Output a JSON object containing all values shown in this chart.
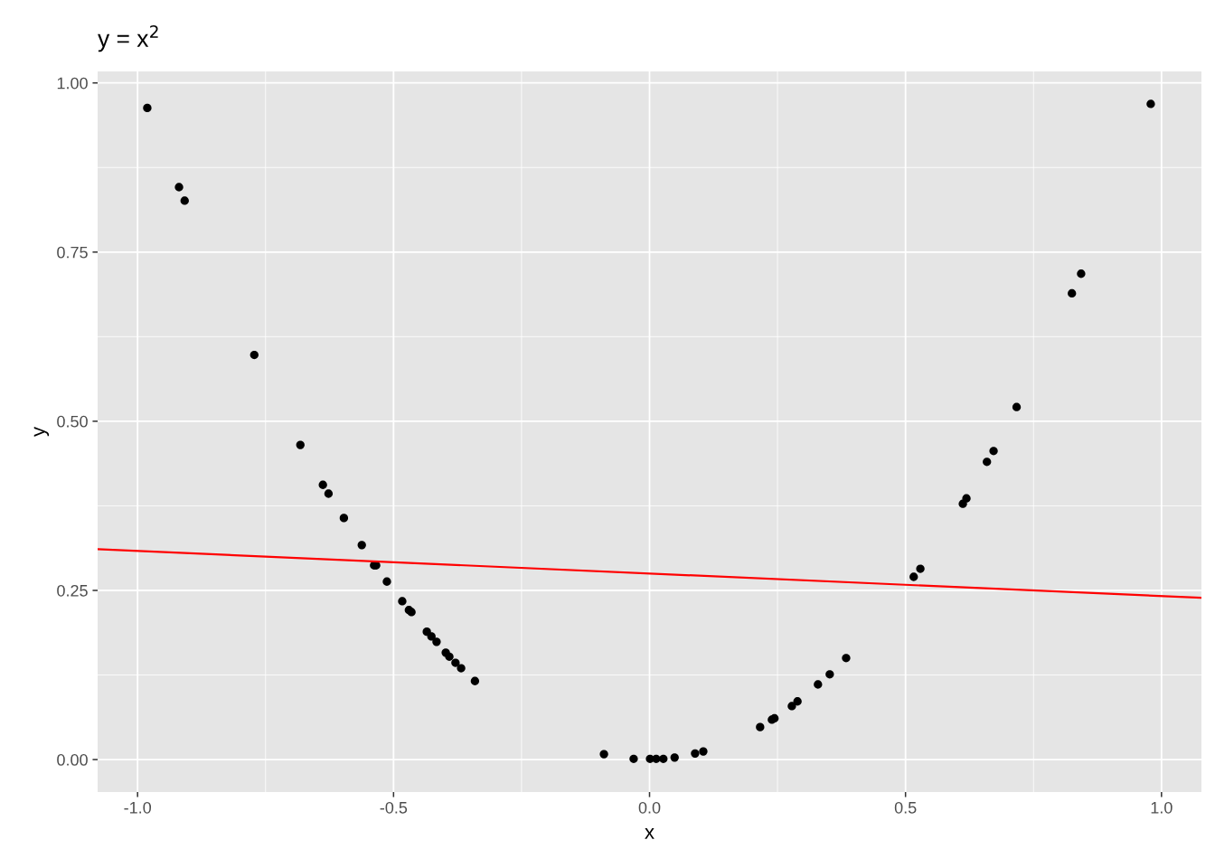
{
  "chart_data": {
    "type": "scatter",
    "title": "y = x$^{2}$",
    "xlabel": "x",
    "ylabel": "y",
    "xlim": [
      -1.078,
      1.078
    ],
    "ylim": [
      -0.048,
      1.017
    ],
    "xticks": [
      {
        "value": -1.0,
        "label": "-1.0"
      },
      {
        "value": -0.5,
        "label": "-0.5"
      },
      {
        "value": 0.0,
        "label": "0.0"
      },
      {
        "value": 0.5,
        "label": "0.5"
      },
      {
        "value": 1.0,
        "label": "1.0"
      }
    ],
    "yticks": [
      {
        "value": 0.0,
        "label": "0.00"
      },
      {
        "value": 0.25,
        "label": "0.25"
      },
      {
        "value": 0.5,
        "label": "0.50"
      },
      {
        "value": 0.75,
        "label": "0.75"
      },
      {
        "value": 1.0,
        "label": "1.00"
      }
    ],
    "grid": true,
    "marker": "circle",
    "series": [
      {
        "color": "#000000",
        "x": [
          -0.981,
          -0.919,
          -0.908,
          -0.772,
          -0.682,
          -0.638,
          -0.627,
          -0.597,
          -0.562,
          -0.538,
          -0.534,
          -0.513,
          -0.483,
          -0.47,
          -0.465,
          -0.435,
          -0.426,
          -0.416,
          -0.398,
          -0.391,
          -0.379,
          -0.368,
          -0.341,
          -0.089,
          -0.031,
          0.001,
          0.013,
          0.027,
          0.049,
          0.089,
          0.105,
          0.216,
          0.239,
          0.244,
          0.278,
          0.289,
          0.329,
          0.352,
          0.384,
          0.516,
          0.529,
          0.612,
          0.619,
          0.659,
          0.672,
          0.717,
          0.825,
          0.843,
          0.979
        ],
        "values": [
          0.963,
          0.846,
          0.826,
          0.598,
          0.465,
          0.406,
          0.393,
          0.357,
          0.317,
          0.287,
          0.287,
          0.263,
          0.234,
          0.221,
          0.218,
          0.189,
          0.182,
          0.174,
          0.158,
          0.152,
          0.143,
          0.135,
          0.116,
          0.008,
          0.001,
          0.001,
          0.001,
          0.001,
          0.003,
          0.009,
          0.012,
          0.048,
          0.059,
          0.061,
          0.079,
          0.086,
          0.111,
          0.126,
          0.15,
          0.27,
          0.282,
          0.378,
          0.386,
          0.44,
          0.456,
          0.521,
          0.689,
          0.718,
          0.969
        ]
      },
      {
        "type": "line",
        "color": "#ff0000",
        "x": [
          -1.078,
          1.078
        ],
        "values": [
          0.311,
          0.239
        ],
        "marker": "none",
        "line_style": "solid"
      }
    ]
  }
}
